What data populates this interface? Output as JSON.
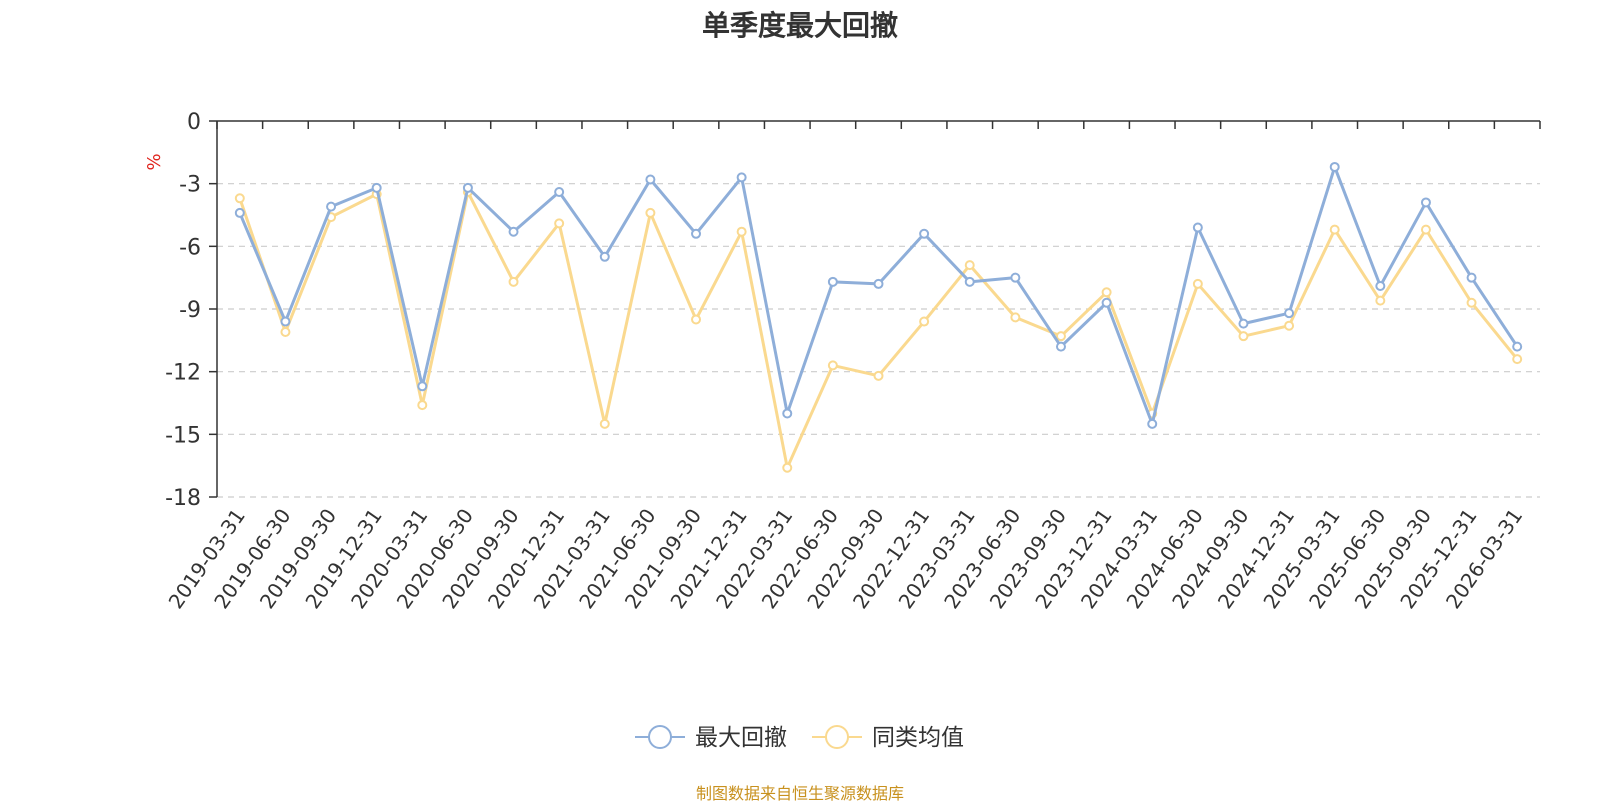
{
  "chart_data": {
    "type": "line",
    "title": "单季度最大回撤",
    "ylabel": "%",
    "xlabel": "",
    "ylim": [
      -18,
      0
    ],
    "yticks": [
      0,
      -3,
      -6,
      -9,
      -12,
      -15,
      -18
    ],
    "grid": true,
    "legend_position": "bottom",
    "categories": [
      "2019-03-31",
      "2019-06-30",
      "2019-09-30",
      "2019-12-31",
      "2020-03-31",
      "2020-06-30",
      "2020-09-30",
      "2020-12-31",
      "2021-03-31",
      "2021-06-30",
      "2021-09-30",
      "2021-12-31",
      "2022-03-31",
      "2022-06-30",
      "2022-09-30",
      "2022-12-31",
      "2023-03-31",
      "2023-06-30",
      "2023-09-30",
      "2023-12-31",
      "2024-03-31",
      "2024-06-30",
      "2024-09-30",
      "2024-12-31",
      "2025-03-31",
      "2025-06-30",
      "2025-09-30",
      "2025-12-31",
      "2026-03-31"
    ],
    "series": [
      {
        "name": "最大回撤",
        "color": "#8eaed9",
        "values": [
          -4.4,
          -9.6,
          -4.1,
          -3.2,
          -12.7,
          -3.2,
          -5.3,
          -3.4,
          -6.5,
          -2.8,
          -5.4,
          -2.7,
          -14.0,
          -7.7,
          -7.8,
          -5.4,
          -7.7,
          -7.5,
          -10.8,
          -8.7,
          -14.5,
          -5.1,
          -9.7,
          -9.2,
          -2.2,
          -7.9,
          -3.9,
          -7.5,
          -10.8
        ]
      },
      {
        "name": "同类均值",
        "color": "#fad98f",
        "values": [
          -3.7,
          -10.1,
          -4.6,
          -3.5,
          -13.6,
          -3.4,
          -7.7,
          -4.9,
          -14.5,
          -4.4,
          -9.5,
          -5.3,
          -16.6,
          -11.7,
          -12.2,
          -9.6,
          -6.9,
          -9.4,
          -10.3,
          -8.2,
          -14.0,
          -7.8,
          -10.3,
          -9.8,
          -5.2,
          -8.6,
          -5.2,
          -8.7,
          -11.4
        ]
      }
    ]
  },
  "source_note": "制图数据来自恒生聚源数据库"
}
